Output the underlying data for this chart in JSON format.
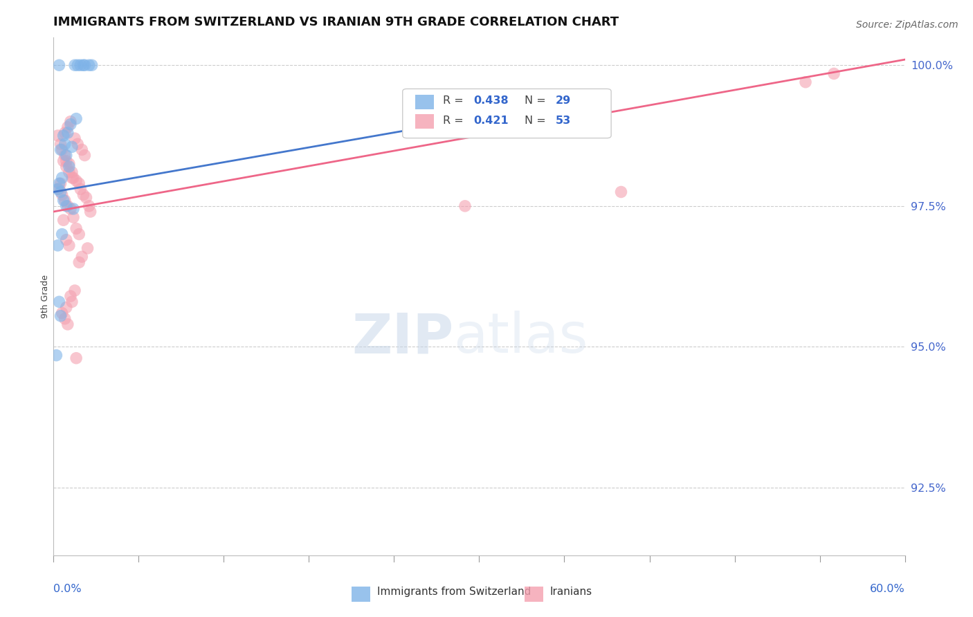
{
  "title": "IMMIGRANTS FROM SWITZERLAND VS IRANIAN 9TH GRADE CORRELATION CHART",
  "source": "Source: ZipAtlas.com",
  "ylabel": "9th Grade",
  "blue_color": "#7EB3E8",
  "pink_color": "#F4A0B0",
  "blue_line_color": "#4477CC",
  "pink_line_color": "#EE6688",
  "watermark_zip_color": "#C5D5E8",
  "watermark_atlas_color": "#C5D5E8",
  "background_color": "#FFFFFF",
  "grid_color": "#CCCCCC",
  "xmin": 0.0,
  "xmax": 0.6,
  "ymin": 0.913,
  "ymax": 1.005,
  "right_yticks": [
    1.0,
    0.975,
    0.95,
    0.925
  ],
  "right_yticklabels": [
    "100.0%",
    "97.5%",
    "95.0%",
    "92.5%"
  ],
  "blue_R": 0.438,
  "blue_N": 29,
  "pink_R": 0.421,
  "pink_N": 53,
  "blue_scatter_x": [
    0.004,
    0.015,
    0.017,
    0.019,
    0.021,
    0.022,
    0.025,
    0.027,
    0.016,
    0.012,
    0.01,
    0.007,
    0.008,
    0.013,
    0.005,
    0.009,
    0.011,
    0.006,
    0.004,
    0.003,
    0.005,
    0.007,
    0.009,
    0.014,
    0.006,
    0.003,
    0.004,
    0.005,
    0.002
  ],
  "blue_scatter_y": [
    1.0,
    1.0,
    1.0,
    1.0,
    1.0,
    1.0,
    1.0,
    1.0,
    0.9905,
    0.9895,
    0.988,
    0.9875,
    0.986,
    0.9855,
    0.985,
    0.984,
    0.982,
    0.98,
    0.979,
    0.978,
    0.9775,
    0.976,
    0.975,
    0.9745,
    0.97,
    0.968,
    0.958,
    0.9555,
    0.9485
  ],
  "pink_scatter_x": [
    0.003,
    0.005,
    0.006,
    0.008,
    0.009,
    0.011,
    0.013,
    0.014,
    0.016,
    0.018,
    0.019,
    0.021,
    0.023,
    0.025,
    0.026,
    0.012,
    0.01,
    0.008,
    0.015,
    0.017,
    0.02,
    0.022,
    0.007,
    0.009,
    0.011,
    0.013,
    0.005,
    0.004,
    0.006,
    0.008,
    0.01,
    0.012,
    0.014,
    0.007,
    0.016,
    0.018,
    0.009,
    0.011,
    0.024,
    0.02,
    0.018,
    0.29,
    0.4,
    0.53,
    0.55,
    0.015,
    0.012,
    0.013,
    0.009,
    0.006,
    0.008,
    0.01,
    0.016
  ],
  "pink_scatter_y": [
    0.9875,
    0.986,
    0.985,
    0.984,
    0.983,
    0.9825,
    0.981,
    0.98,
    0.9795,
    0.979,
    0.978,
    0.977,
    0.9765,
    0.975,
    0.974,
    0.99,
    0.989,
    0.988,
    0.987,
    0.986,
    0.985,
    0.984,
    0.983,
    0.982,
    0.981,
    0.98,
    0.979,
    0.978,
    0.977,
    0.976,
    0.975,
    0.9745,
    0.973,
    0.9725,
    0.971,
    0.97,
    0.969,
    0.968,
    0.9675,
    0.966,
    0.965,
    0.975,
    0.9775,
    0.997,
    0.9985,
    0.96,
    0.959,
    0.958,
    0.957,
    0.956,
    0.955,
    0.954,
    0.948
  ],
  "blue_trendline_x": [
    0.0,
    0.33
  ],
  "blue_trendline_y": [
    0.9775,
    0.992
  ],
  "pink_trendline_x": [
    0.0,
    0.6
  ],
  "pink_trendline_y": [
    0.974,
    1.001
  ]
}
